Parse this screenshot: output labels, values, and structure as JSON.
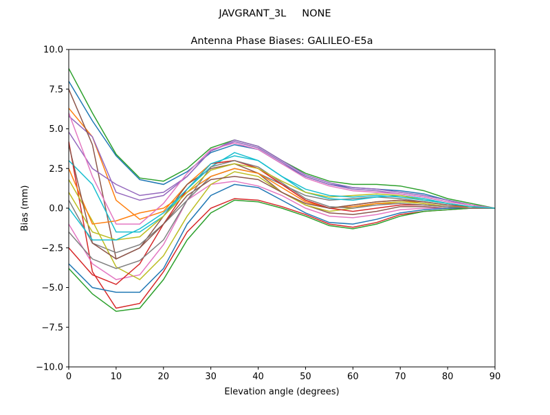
{
  "figure_title": "JAVGRANT_3L     NONE",
  "chart_data": {
    "type": "line",
    "title": "Antenna Phase Biases: GALILEO-E5a",
    "xlabel": "Elevation angle (degrees)",
    "ylabel": "Bias (mm)",
    "xlim": [
      0,
      90
    ],
    "ylim": [
      -10,
      10
    ],
    "xticks": [
      "0",
      "10",
      "20",
      "30",
      "40",
      "50",
      "60",
      "70",
      "80",
      "90"
    ],
    "yticks": [
      "−10.0",
      "−7.5",
      "−5.0",
      "−2.5",
      "0.0",
      "2.5",
      "5.0",
      "7.5",
      "10.0"
    ],
    "grid": false,
    "x": [
      0,
      5,
      10,
      15,
      20,
      25,
      30,
      35,
      40,
      45,
      50,
      55,
      60,
      65,
      70,
      75,
      80,
      85,
      90
    ],
    "colors": [
      "#1f77b4",
      "#ff7f0e",
      "#2ca02c",
      "#d62728",
      "#9467bd",
      "#8c564b",
      "#e377c2",
      "#7f7f7f",
      "#bcbd22",
      "#17becf"
    ],
    "series": [
      {
        "values": [
          8.0,
          5.5,
          3.3,
          1.8,
          1.5,
          2.3,
          3.5,
          4.0,
          3.7,
          2.8,
          2.0,
          1.5,
          1.3,
          1.2,
          1.1,
          0.9,
          0.5,
          0.2,
          0
        ]
      },
      {
        "values": [
          6.3,
          4.5,
          0.5,
          -0.7,
          -0.2,
          1.5,
          2.8,
          3.0,
          2.5,
          1.5,
          0.5,
          0.0,
          0.2,
          0.4,
          0.5,
          0.3,
          0.1,
          0.1,
          0
        ]
      },
      {
        "values": [
          8.8,
          6.0,
          3.4,
          1.9,
          1.7,
          2.5,
          3.8,
          4.3,
          3.9,
          3.0,
          2.2,
          1.7,
          1.5,
          1.5,
          1.4,
          1.1,
          0.6,
          0.3,
          0
        ]
      },
      {
        "values": [
          4.2,
          -4.0,
          -6.3,
          -6.0,
          -4.0,
          -1.5,
          0.0,
          0.6,
          0.5,
          0.1,
          -0.4,
          -1.0,
          -1.2,
          -0.9,
          -0.4,
          -0.2,
          -0.1,
          0,
          0
        ]
      },
      {
        "values": [
          5.8,
          4.5,
          1.0,
          0.5,
          0.8,
          2.0,
          3.6,
          4.3,
          3.9,
          3.0,
          2.1,
          1.6,
          1.3,
          1.2,
          1.0,
          0.8,
          0.5,
          0.2,
          0
        ]
      },
      {
        "values": [
          7.5,
          4.0,
          -3.2,
          -2.5,
          -0.5,
          1.5,
          2.5,
          2.8,
          2.2,
          1.0,
          0.2,
          -0.3,
          -0.4,
          -0.2,
          0.1,
          0.1,
          0,
          0,
          0
        ]
      },
      {
        "values": [
          -1.0,
          -3.5,
          -4.5,
          -4.2,
          -2.3,
          0.5,
          1.5,
          1.7,
          1.4,
          0.8,
          0.0,
          -0.5,
          -0.6,
          -0.4,
          -0.1,
          0,
          0,
          0,
          0
        ]
      },
      {
        "values": [
          0.5,
          -2.2,
          -2.8,
          -2.3,
          -1.0,
          0.5,
          2.0,
          2.5,
          2.2,
          1.5,
          0.8,
          0.5,
          0.6,
          0.7,
          0.6,
          0.4,
          0.2,
          0.1,
          0
        ]
      },
      {
        "values": [
          1.8,
          -0.8,
          -3.7,
          -4.5,
          -3.0,
          -0.5,
          1.5,
          2.3,
          2.0,
          1.0,
          0.2,
          -0.2,
          0.0,
          0.3,
          0.4,
          0.3,
          0.1,
          0,
          0
        ]
      },
      {
        "values": [
          3.0,
          1.5,
          -1.5,
          -1.5,
          -0.5,
          1.2,
          2.6,
          3.5,
          3.0,
          2.0,
          1.0,
          0.6,
          0.5,
          0.7,
          0.8,
          0.6,
          0.3,
          0.1,
          0
        ]
      },
      {
        "values": [
          -3.5,
          -5.0,
          -5.3,
          -5.3,
          -3.8,
          -1.0,
          0.8,
          1.5,
          1.3,
          0.5,
          -0.3,
          -0.9,
          -1.0,
          -0.7,
          -0.3,
          -0.1,
          0,
          0,
          0
        ]
      },
      {
        "values": [
          2.5,
          -1.0,
          -0.8,
          -0.3,
          0.0,
          1.0,
          2.0,
          2.5,
          2.2,
          1.3,
          0.4,
          0.0,
          0.1,
          0.3,
          0.3,
          0.2,
          0.1,
          0,
          0
        ]
      },
      {
        "values": [
          -3.8,
          -5.4,
          -6.5,
          -6.3,
          -4.5,
          -2.0,
          -0.3,
          0.5,
          0.4,
          0.0,
          -0.5,
          -1.1,
          -1.3,
          -1.0,
          -0.5,
          -0.2,
          -0.1,
          0,
          0
        ]
      },
      {
        "values": [
          -2.5,
          -4.2,
          -4.8,
          -3.5,
          -1.0,
          1.2,
          2.8,
          3.0,
          2.5,
          1.5,
          0.5,
          0.0,
          -0.2,
          0.0,
          0.2,
          0.2,
          0.1,
          0,
          0
        ]
      },
      {
        "values": [
          4.8,
          2.5,
          1.5,
          0.8,
          1.0,
          2.0,
          3.6,
          4.2,
          3.8,
          2.9,
          2.0,
          1.5,
          1.2,
          1.1,
          0.9,
          0.7,
          0.4,
          0.2,
          0
        ]
      },
      {
        "values": [
          4.0,
          -2.2,
          -3.2,
          -2.5,
          -1.0,
          0.8,
          1.8,
          2.0,
          1.8,
          1.0,
          0.3,
          0.0,
          0.2,
          0.4,
          0.5,
          0.4,
          0.2,
          0.1,
          0
        ]
      },
      {
        "values": [
          6.0,
          2.0,
          -1.0,
          -1.0,
          0.3,
          2.2,
          3.7,
          4.1,
          3.7,
          2.8,
          1.9,
          1.4,
          1.1,
          1.0,
          0.9,
          0.7,
          0.4,
          0.2,
          0
        ]
      },
      {
        "values": [
          -1.5,
          -3.2,
          -3.8,
          -3.3,
          -2.0,
          0.5,
          2.6,
          3.0,
          2.6,
          1.6,
          0.6,
          0.1,
          0.0,
          0.2,
          0.3,
          0.2,
          0.1,
          0,
          0
        ]
      },
      {
        "values": [
          1.0,
          -1.5,
          -2.0,
          -1.8,
          -0.5,
          1.0,
          2.4,
          2.8,
          2.5,
          1.7,
          1.0,
          0.7,
          0.8,
          0.9,
          0.8,
          0.5,
          0.3,
          0.1,
          0
        ]
      },
      {
        "values": [
          0.0,
          -2.0,
          -2.0,
          -1.3,
          -0.3,
          1.2,
          2.8,
          3.3,
          3.0,
          2.0,
          1.2,
          0.8,
          0.7,
          0.8,
          0.7,
          0.5,
          0.3,
          0.1,
          0
        ]
      }
    ]
  }
}
